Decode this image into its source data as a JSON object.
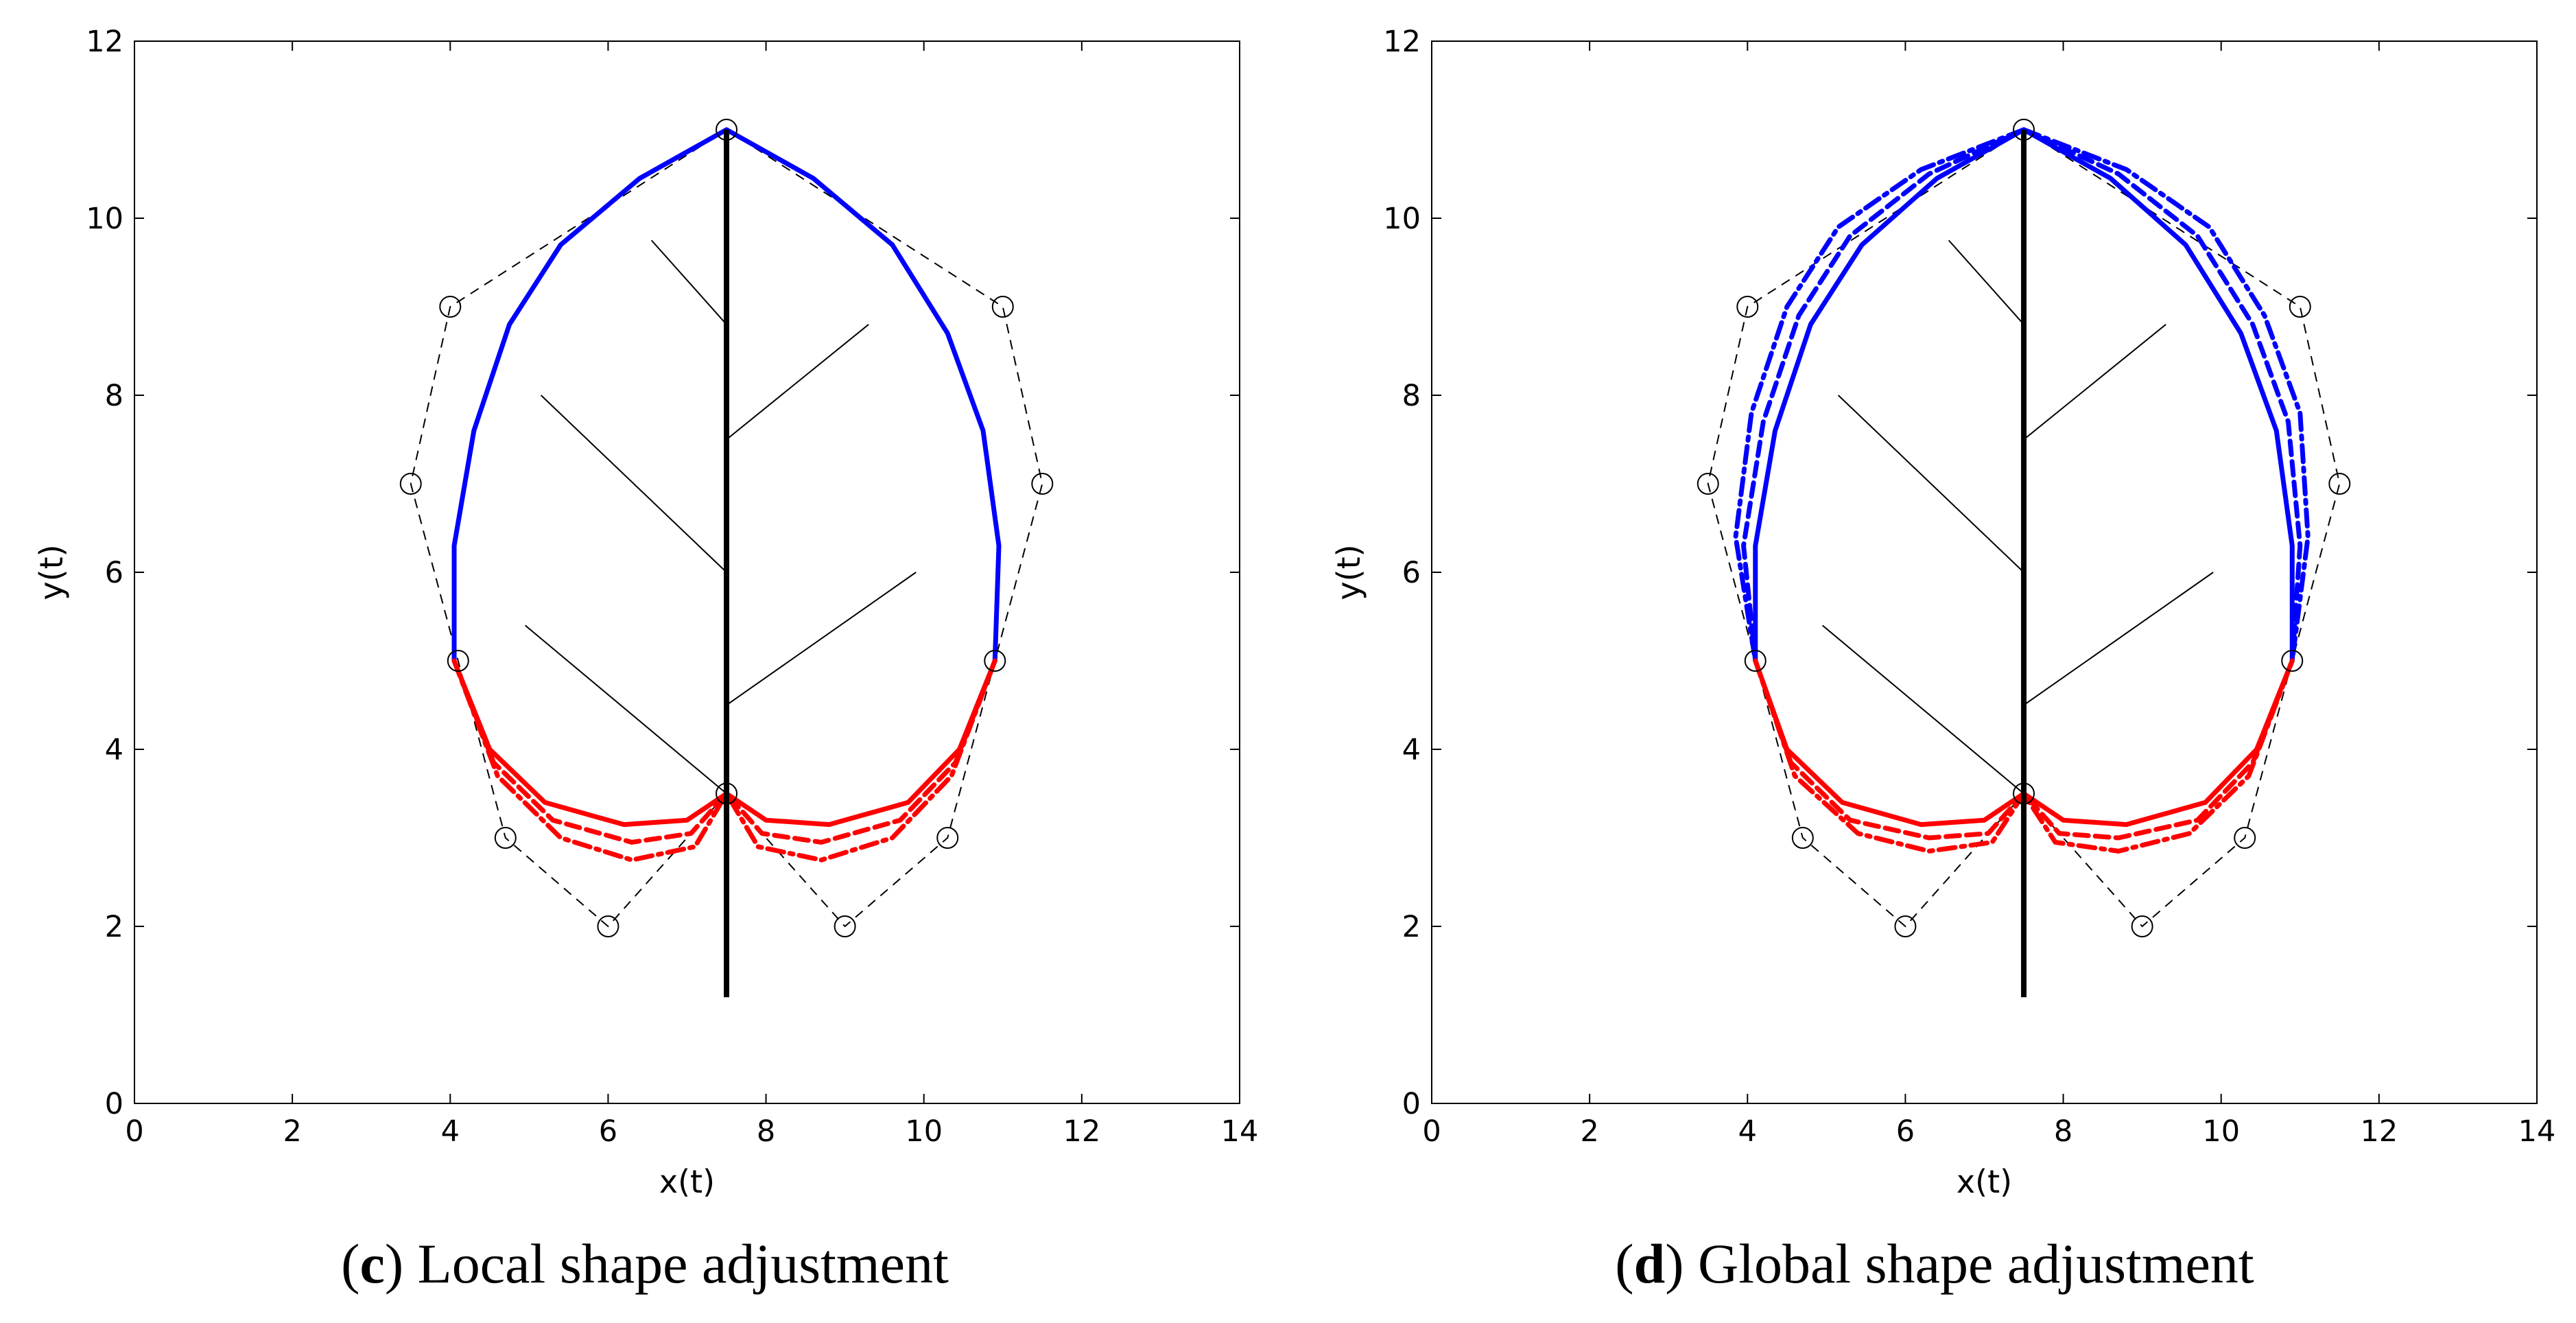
{
  "chart_data": [
    {
      "type": "line",
      "panel": "c",
      "caption_letter": "c",
      "caption_text": "Local shape adjustment",
      "xlabel": "x(t)",
      "ylabel": "y(t)",
      "xlim": [
        0,
        14
      ],
      "ylim": [
        0,
        12
      ],
      "xticks": [
        0,
        2,
        4,
        6,
        8,
        10,
        12,
        14
      ],
      "yticks": [
        0,
        2,
        4,
        6,
        8,
        10,
        12
      ],
      "control_points": [
        [
          7.5,
          11
        ],
        [
          11,
          9
        ],
        [
          11.5,
          7
        ],
        [
          10.9,
          5
        ],
        [
          10.3,
          3
        ],
        [
          9,
          2
        ],
        [
          7.5,
          3.5
        ],
        [
          6,
          2
        ],
        [
          4.7,
          3
        ],
        [
          4.1,
          5
        ],
        [
          3.5,
          7
        ],
        [
          4,
          9
        ],
        [
          7.5,
          11
        ]
      ],
      "midrib": [
        [
          7.5,
          11
        ],
        [
          7.5,
          1.2
        ]
      ],
      "veins": [
        [
          [
            7.5,
            8.8
          ],
          [
            6.55,
            9.75
          ]
        ],
        [
          [
            7.5,
            7.5
          ],
          [
            9.3,
            8.8
          ]
        ],
        [
          [
            7.5,
            6.0
          ],
          [
            5.15,
            8.0
          ]
        ],
        [
          [
            7.5,
            4.5
          ],
          [
            9.9,
            6.0
          ]
        ],
        [
          [
            7.5,
            3.5
          ],
          [
            4.95,
            5.4
          ]
        ]
      ],
      "series": [
        {
          "name": "upper-outline-solid",
          "color": "#0000ff",
          "style": "solid",
          "points": [
            [
              7.5,
              11
            ],
            [
              6.4,
              10.45
            ],
            [
              5.4,
              9.7
            ],
            [
              4.75,
              8.8
            ],
            [
              4.3,
              7.6
            ],
            [
              4.05,
              6.3
            ],
            [
              4.05,
              5.0
            ],
            [
              7.5,
              11
            ],
            [
              8.6,
              10.45
            ],
            [
              9.6,
              9.7
            ],
            [
              10.3,
              8.7
            ],
            [
              10.75,
              7.6
            ],
            [
              10.95,
              6.3
            ],
            [
              10.9,
              5.0
            ]
          ]
        },
        {
          "name": "lower-outline-solid",
          "color": "#ff0000",
          "style": "solid",
          "points": [
            [
              4.05,
              5.0
            ],
            [
              4.5,
              4.0
            ],
            [
              5.2,
              3.4
            ],
            [
              6.2,
              3.15
            ],
            [
              7.0,
              3.2
            ],
            [
              7.5,
              3.5
            ],
            [
              8.0,
              3.2
            ],
            [
              8.8,
              3.15
            ],
            [
              9.8,
              3.4
            ],
            [
              10.45,
              4.0
            ],
            [
              10.9,
              5.0
            ]
          ]
        },
        {
          "name": "lower-outline-dashed",
          "color": "#ff0000",
          "style": "dashed",
          "points": [
            [
              4.05,
              5.0
            ],
            [
              4.55,
              3.85
            ],
            [
              5.3,
              3.2
            ],
            [
              6.3,
              2.95
            ],
            [
              7.05,
              3.05
            ],
            [
              7.5,
              3.5
            ],
            [
              7.95,
              3.05
            ],
            [
              8.7,
              2.95
            ],
            [
              9.7,
              3.2
            ],
            [
              10.4,
              3.85
            ],
            [
              10.9,
              5.0
            ]
          ]
        },
        {
          "name": "lower-outline-dashdot",
          "color": "#ff0000",
          "style": "dashdot",
          "points": [
            [
              4.05,
              5.0
            ],
            [
              4.6,
              3.7
            ],
            [
              5.4,
              3.0
            ],
            [
              6.3,
              2.75
            ],
            [
              7.1,
              2.9
            ],
            [
              7.5,
              3.5
            ],
            [
              7.9,
              2.9
            ],
            [
              8.7,
              2.75
            ],
            [
              9.6,
              3.0
            ],
            [
              10.35,
              3.7
            ],
            [
              10.9,
              5.0
            ]
          ]
        }
      ]
    },
    {
      "type": "line",
      "panel": "d",
      "caption_letter": "d",
      "caption_text": "Global shape adjustment",
      "xlabel": "x(t)",
      "ylabel": "y(t)",
      "xlim": [
        0,
        14
      ],
      "ylim": [
        0,
        12
      ],
      "xticks": [
        0,
        2,
        4,
        6,
        8,
        10,
        12,
        14
      ],
      "yticks": [
        0,
        2,
        4,
        6,
        8,
        10,
        12
      ],
      "control_points": [
        [
          7.5,
          11
        ],
        [
          11,
          9
        ],
        [
          11.5,
          7
        ],
        [
          10.9,
          5
        ],
        [
          10.3,
          3
        ],
        [
          9,
          2
        ],
        [
          7.5,
          3.5
        ],
        [
          6,
          2
        ],
        [
          4.7,
          3
        ],
        [
          4.1,
          5
        ],
        [
          3.5,
          7
        ],
        [
          4,
          9
        ],
        [
          7.5,
          11
        ]
      ],
      "midrib": [
        [
          7.5,
          11
        ],
        [
          7.5,
          1.2
        ]
      ],
      "veins": [
        [
          [
            7.5,
            8.8
          ],
          [
            6.55,
            9.75
          ]
        ],
        [
          [
            7.5,
            7.5
          ],
          [
            9.3,
            8.8
          ]
        ],
        [
          [
            7.5,
            6.0
          ],
          [
            5.15,
            8.0
          ]
        ],
        [
          [
            7.5,
            4.5
          ],
          [
            9.9,
            6.0
          ]
        ],
        [
          [
            7.5,
            3.5
          ],
          [
            4.95,
            5.4
          ]
        ]
      ],
      "series": [
        {
          "name": "upper-outline-solid",
          "color": "#0000ff",
          "style": "solid",
          "points": [
            [
              7.5,
              11
            ],
            [
              6.4,
              10.45
            ],
            [
              5.45,
              9.7
            ],
            [
              4.8,
              8.8
            ],
            [
              4.35,
              7.6
            ],
            [
              4.1,
              6.3
            ],
            [
              4.1,
              5.0
            ],
            [
              7.5,
              11
            ],
            [
              8.6,
              10.45
            ],
            [
              9.55,
              9.7
            ],
            [
              10.25,
              8.7
            ],
            [
              10.7,
              7.6
            ],
            [
              10.9,
              6.3
            ],
            [
              10.9,
              5.0
            ]
          ]
        },
        {
          "name": "upper-outline-dashed",
          "color": "#0000ff",
          "style": "dashed",
          "points": [
            [
              7.5,
              11
            ],
            [
              6.3,
              10.5
            ],
            [
              5.3,
              9.8
            ],
            [
              4.65,
              8.9
            ],
            [
              4.2,
              7.7
            ],
            [
              3.95,
              6.3
            ],
            [
              4.1,
              5.0
            ],
            [
              7.5,
              11
            ],
            [
              8.7,
              10.5
            ],
            [
              9.7,
              9.8
            ],
            [
              10.4,
              8.8
            ],
            [
              10.85,
              7.7
            ],
            [
              11.0,
              6.3
            ],
            [
              10.9,
              5.0
            ]
          ]
        },
        {
          "name": "upper-outline-dashdot",
          "color": "#0000ff",
          "style": "dashdot",
          "points": [
            [
              7.5,
              11
            ],
            [
              6.2,
              10.55
            ],
            [
              5.15,
              9.9
            ],
            [
              4.5,
              9.0
            ],
            [
              4.05,
              7.8
            ],
            [
              3.85,
              6.4
            ],
            [
              4.1,
              5.0
            ],
            [
              7.5,
              11
            ],
            [
              8.8,
              10.55
            ],
            [
              9.85,
              9.9
            ],
            [
              10.55,
              8.9
            ],
            [
              11.0,
              7.8
            ],
            [
              11.1,
              6.4
            ],
            [
              10.9,
              5.0
            ]
          ]
        },
        {
          "name": "lower-outline-solid",
          "color": "#ff0000",
          "style": "solid",
          "points": [
            [
              4.1,
              5.0
            ],
            [
              4.5,
              4.0
            ],
            [
              5.2,
              3.4
            ],
            [
              6.2,
              3.15
            ],
            [
              7.0,
              3.2
            ],
            [
              7.5,
              3.5
            ],
            [
              8.0,
              3.2
            ],
            [
              8.8,
              3.15
            ],
            [
              9.8,
              3.4
            ],
            [
              10.45,
              4.0
            ],
            [
              10.9,
              5.0
            ]
          ]
        },
        {
          "name": "lower-outline-dashed",
          "color": "#ff0000",
          "style": "dashed",
          "points": [
            [
              4.1,
              5.0
            ],
            [
              4.55,
              3.85
            ],
            [
              5.3,
              3.2
            ],
            [
              6.3,
              3.0
            ],
            [
              7.05,
              3.05
            ],
            [
              7.5,
              3.5
            ],
            [
              7.95,
              3.05
            ],
            [
              8.7,
              3.0
            ],
            [
              9.7,
              3.2
            ],
            [
              10.4,
              3.85
            ],
            [
              10.9,
              5.0
            ]
          ]
        },
        {
          "name": "lower-outline-dashdot",
          "color": "#ff0000",
          "style": "dashdot",
          "points": [
            [
              4.1,
              5.0
            ],
            [
              4.6,
              3.7
            ],
            [
              5.4,
              3.05
            ],
            [
              6.3,
              2.85
            ],
            [
              7.1,
              2.95
            ],
            [
              7.5,
              3.5
            ],
            [
              7.9,
              2.95
            ],
            [
              8.7,
              2.85
            ],
            [
              9.6,
              3.05
            ],
            [
              10.35,
              3.7
            ],
            [
              10.9,
              5.0
            ]
          ]
        }
      ]
    }
  ]
}
